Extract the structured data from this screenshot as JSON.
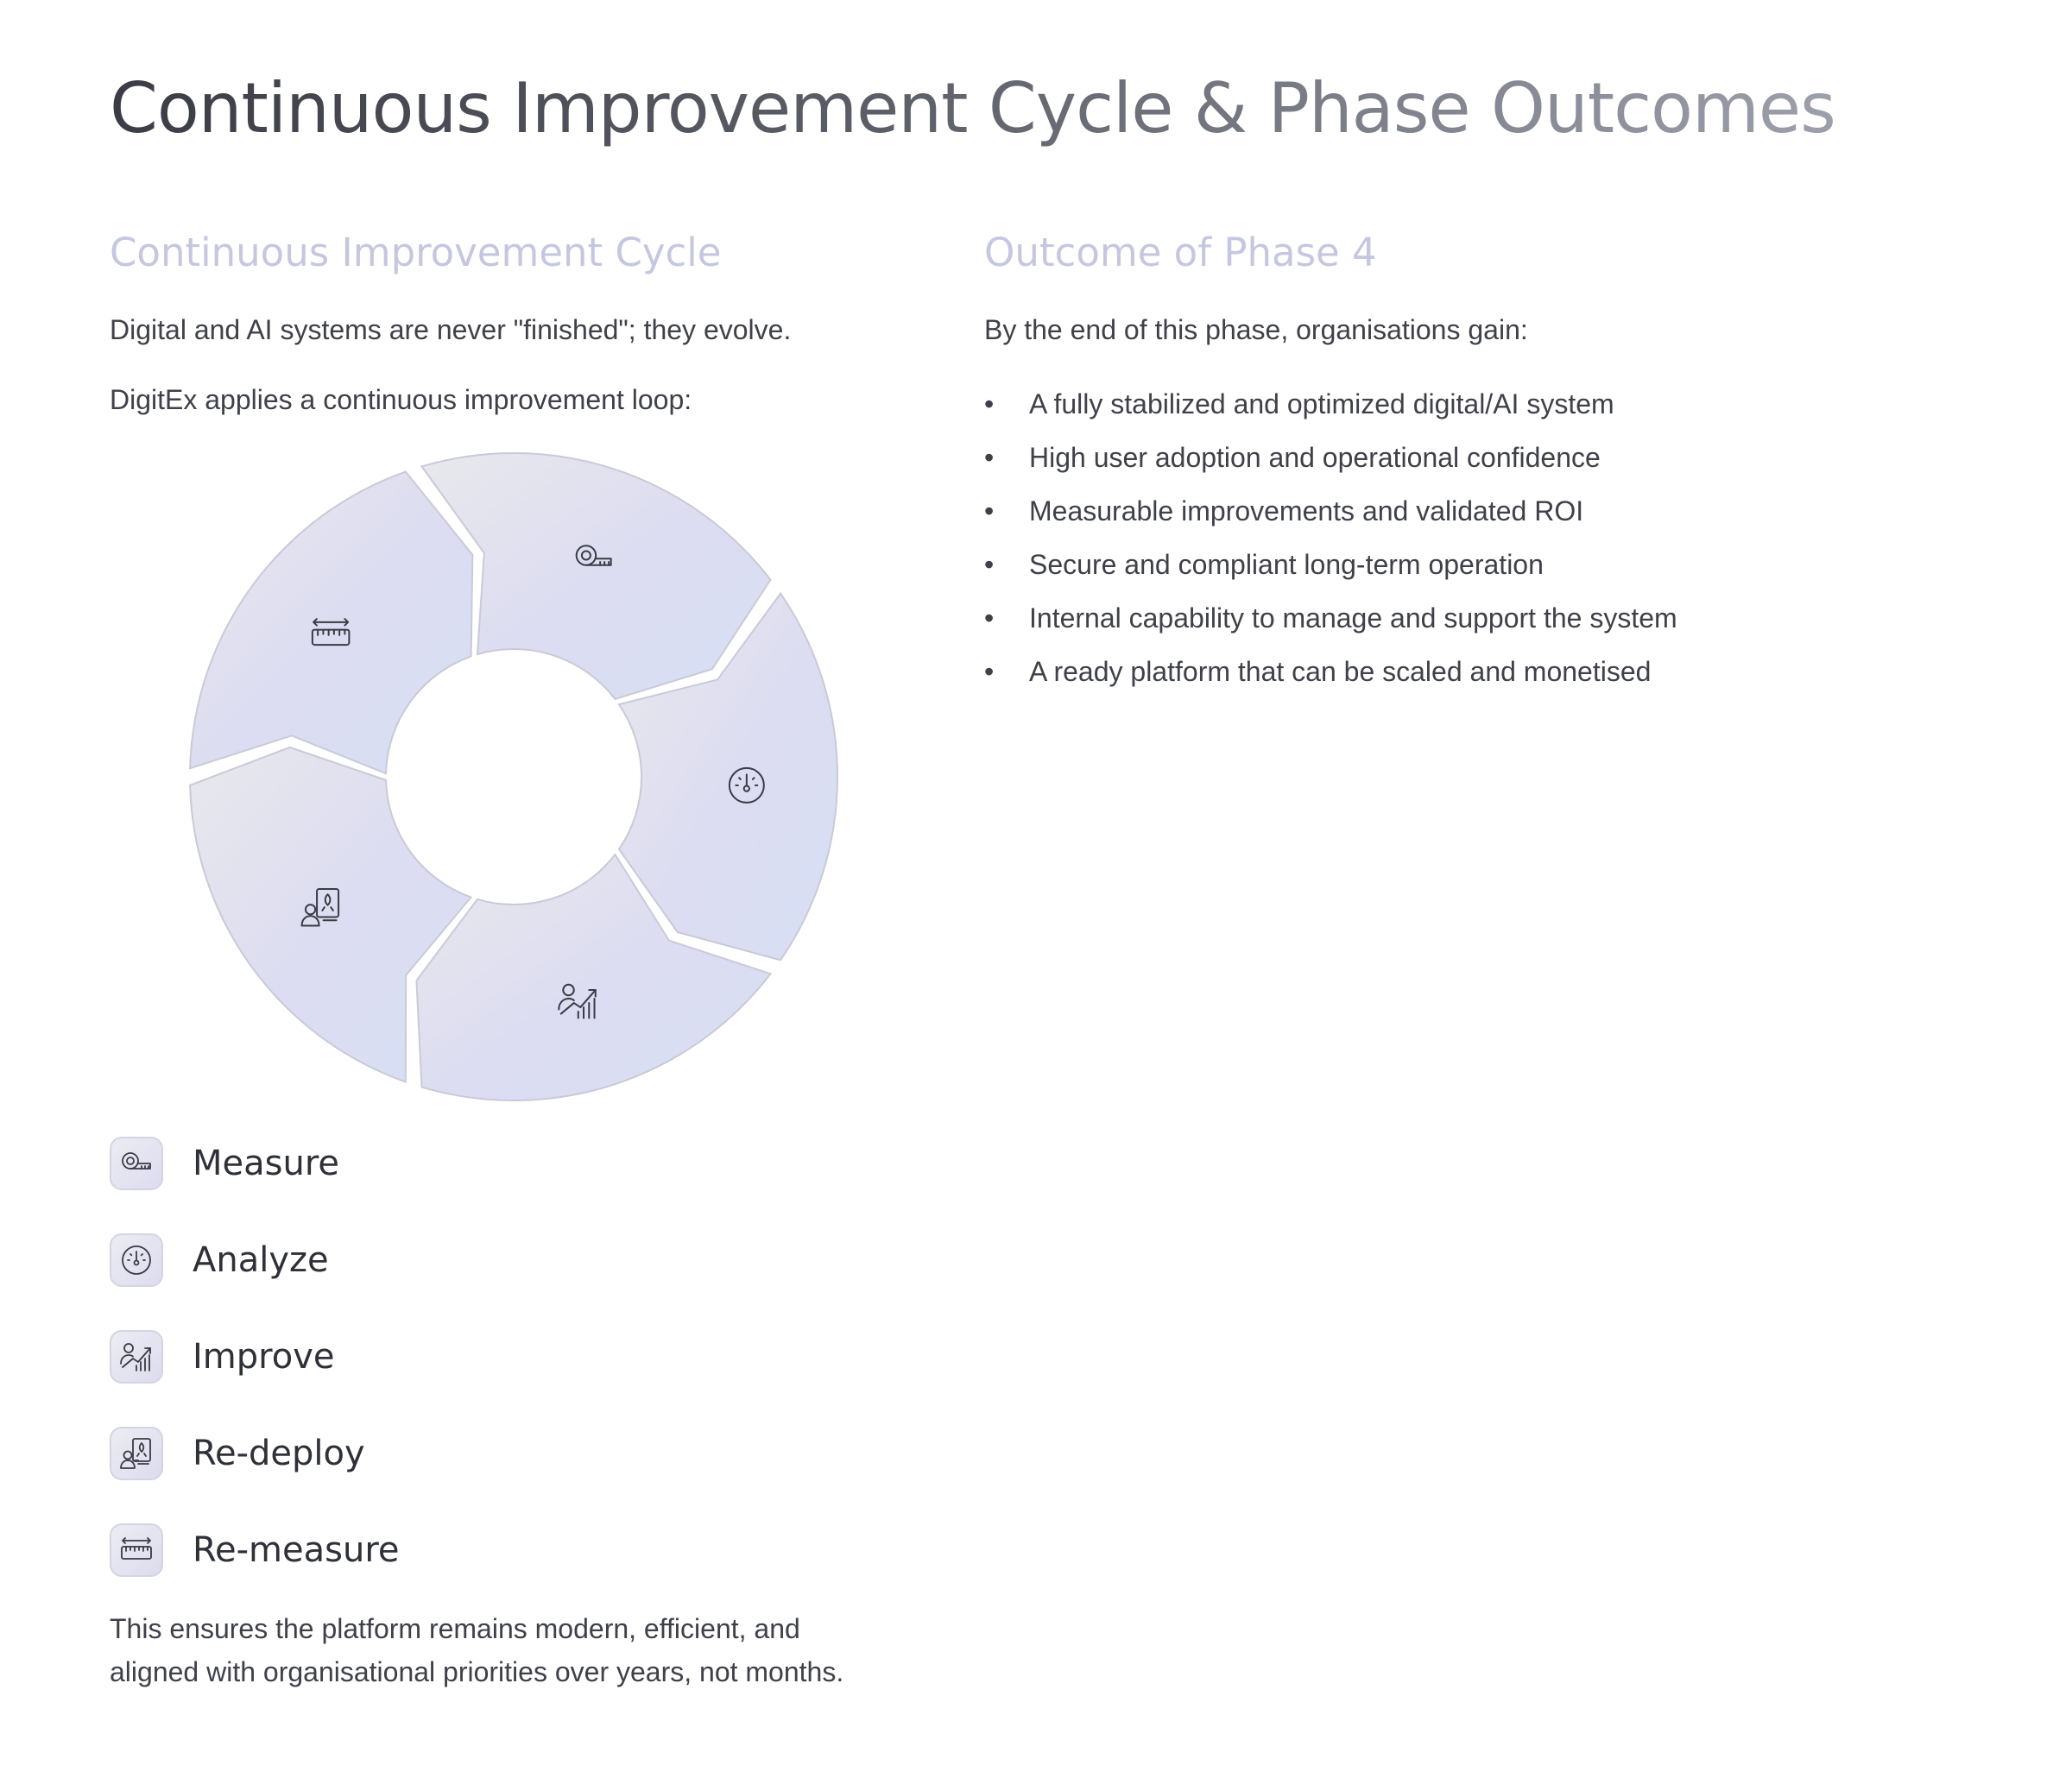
{
  "page_title": "Continuous Improvement Cycle & Phase Outcomes",
  "left": {
    "heading": "Continuous Improvement Cycle",
    "intro_1": "Digital and AI systems are never \"finished\"; they evolve.",
    "intro_2": "DigitEx applies a continuous improvement loop:",
    "cycle_steps": [
      {
        "label": "Measure",
        "icon": "tape-measure-icon"
      },
      {
        "label": "Analyze",
        "icon": "gauge-icon"
      },
      {
        "label": "Improve",
        "icon": "person-growth-chart-icon"
      },
      {
        "label": "Re-deploy",
        "icon": "person-rocket-document-icon"
      },
      {
        "label": "Re-measure",
        "icon": "ruler-icon"
      }
    ],
    "closing_line_1": "This ensures the platform remains modern, efficient, and",
    "closing_line_2": "aligned with organisational priorities over years, not months."
  },
  "right": {
    "heading": "Outcome of Phase 4",
    "intro": "By the end of this phase, organisations gain:",
    "outcomes": [
      "A fully stabilized and optimized digital/AI system",
      "High user adoption and operational confidence",
      "Measurable improvements and validated ROI",
      "Secure and compliant long-term operation",
      "Internal capability to manage and support the system",
      "A ready platform that can be scaled and monetised"
    ]
  },
  "colors": {
    "heading_accent": "#c5c7e0",
    "segment_fill_start": "#e8e8ec",
    "segment_fill_end": "#d8d9f2",
    "segment_stroke": "#c9cad8",
    "icon_stroke": "#3a3b45"
  }
}
